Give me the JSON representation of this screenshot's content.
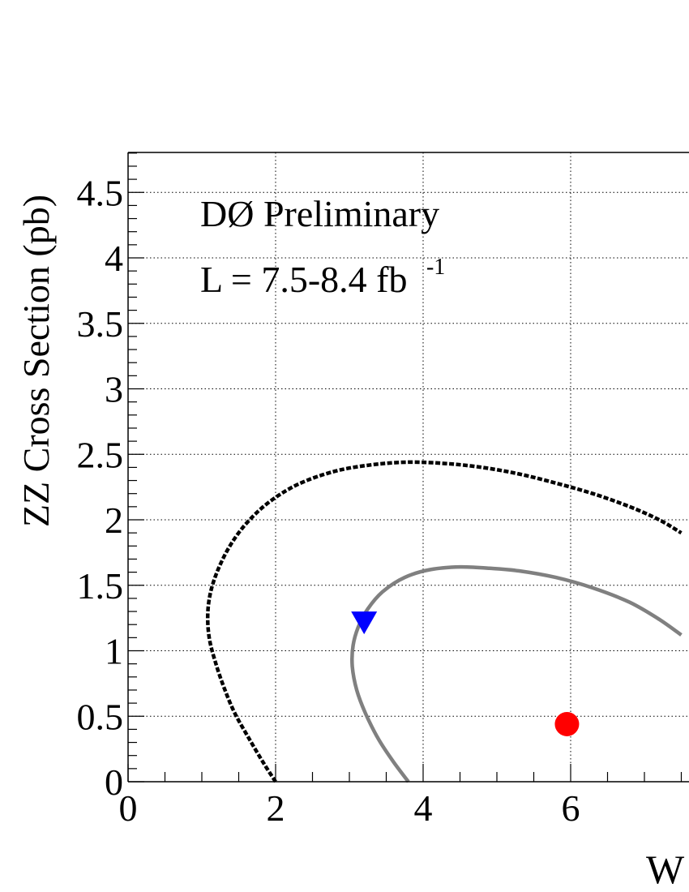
{
  "chart_data": {
    "type": "line",
    "title": "",
    "annotations": {
      "experiment": "DØ Preliminary",
      "lumi_text": "L = 7.5-8.4 fb",
      "lumi_exponent": "-1"
    },
    "xlabel": "W",
    "ylabel": "ZZ Cross Section (pb)",
    "xlim": [
      0,
      7.5
    ],
    "ylim": [
      0,
      4.8
    ],
    "grid": true,
    "x_ticks": [
      0,
      2,
      4,
      6
    ],
    "x_tick_labels": [
      "0",
      "2",
      "4",
      "6"
    ],
    "y_ticks": [
      0,
      0.5,
      1,
      1.5,
      2,
      2.5,
      3,
      3.5,
      4,
      4.5
    ],
    "y_tick_labels": [
      "0",
      "0.5",
      "1",
      "1.5",
      "2",
      "2.5",
      "3",
      "3.5",
      "4",
      "4.5"
    ],
    "contours": [
      {
        "style": "dashed",
        "color": "#000000",
        "points": [
          [
            2.0,
            0.0
          ],
          [
            1.85,
            0.13
          ],
          [
            1.65,
            0.32
          ],
          [
            1.45,
            0.52
          ],
          [
            1.3,
            0.72
          ],
          [
            1.18,
            0.92
          ],
          [
            1.1,
            1.1
          ],
          [
            1.08,
            1.28
          ],
          [
            1.12,
            1.45
          ],
          [
            1.22,
            1.62
          ],
          [
            1.38,
            1.8
          ],
          [
            1.6,
            1.97
          ],
          [
            1.9,
            2.13
          ],
          [
            2.3,
            2.27
          ],
          [
            2.8,
            2.37
          ],
          [
            3.3,
            2.42
          ],
          [
            3.8,
            2.44
          ],
          [
            4.3,
            2.43
          ],
          [
            4.8,
            2.4
          ],
          [
            5.3,
            2.35
          ],
          [
            5.8,
            2.28
          ],
          [
            6.3,
            2.2
          ],
          [
            6.8,
            2.1
          ],
          [
            7.2,
            2.0
          ],
          [
            7.5,
            1.9
          ]
        ]
      },
      {
        "style": "solid",
        "color": "#808080",
        "points": [
          [
            3.8,
            0.0
          ],
          [
            3.6,
            0.15
          ],
          [
            3.4,
            0.32
          ],
          [
            3.22,
            0.52
          ],
          [
            3.1,
            0.7
          ],
          [
            3.04,
            0.88
          ],
          [
            3.05,
            1.04
          ],
          [
            3.12,
            1.18
          ],
          [
            3.25,
            1.32
          ],
          [
            3.45,
            1.45
          ],
          [
            3.75,
            1.56
          ],
          [
            4.1,
            1.62
          ],
          [
            4.5,
            1.64
          ],
          [
            4.9,
            1.63
          ],
          [
            5.3,
            1.61
          ],
          [
            5.8,
            1.56
          ],
          [
            6.3,
            1.48
          ],
          [
            6.8,
            1.37
          ],
          [
            7.2,
            1.24
          ],
          [
            7.5,
            1.12
          ]
        ]
      }
    ],
    "points": [
      {
        "marker": "triangle-down",
        "color": "#0000ff",
        "x": 3.2,
        "y": 1.22
      },
      {
        "marker": "circle",
        "color": "#ff0000",
        "x": 5.95,
        "y": 0.44
      }
    ]
  }
}
